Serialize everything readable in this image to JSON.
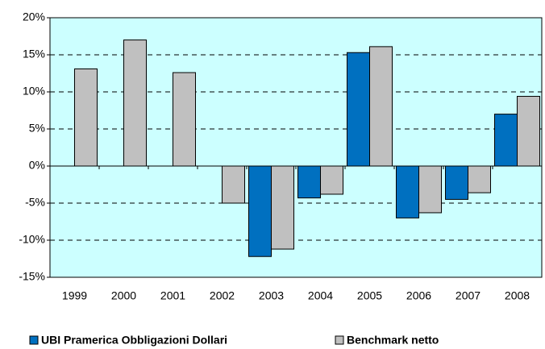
{
  "chart_data": {
    "type": "bar",
    "categories": [
      "1999",
      "2000",
      "2001",
      "2002",
      "2003",
      "2004",
      "2005",
      "2006",
      "2007",
      "2008"
    ],
    "series": [
      {
        "name": "UBI Pramerica Obbligazioni Dollari",
        "color": "#0070c0",
        "values": [
          null,
          null,
          null,
          null,
          -12.2,
          -4.3,
          15.3,
          -7.0,
          -4.5,
          7.0
        ]
      },
      {
        "name": "Benchmark netto",
        "color": "#c0c0c0",
        "values": [
          13.1,
          17.0,
          12.6,
          -5.0,
          -11.2,
          -3.8,
          16.1,
          -6.3,
          -3.6,
          9.4
        ]
      }
    ],
    "ylim": [
      -15,
      20
    ],
    "yticks": [
      {
        "value": -15,
        "label": "-15%"
      },
      {
        "value": -10,
        "label": "-10%"
      },
      {
        "value": -5,
        "label": "-5%"
      },
      {
        "value": 0,
        "label": "0%"
      },
      {
        "value": 5,
        "label": "5%"
      },
      {
        "value": 10,
        "label": "10%"
      },
      {
        "value": 15,
        "label": "15%"
      },
      {
        "value": 20,
        "label": "20%"
      }
    ],
    "grid": true,
    "legend": "bottom"
  }
}
